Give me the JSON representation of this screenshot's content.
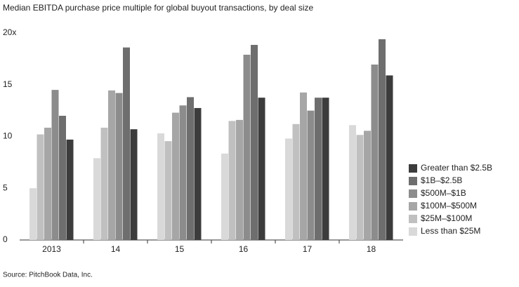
{
  "chart_data": {
    "type": "bar",
    "title": "Median EBITDA purchase price multiple for global buyout transactions, by deal size",
    "source": "Source: PitchBook Data, Inc.",
    "categories": [
      "2013",
      "14",
      "15",
      "16",
      "17",
      "18"
    ],
    "series": [
      {
        "name": "Less than $25M",
        "color": "#d9d9d9",
        "values": [
          5.0,
          7.9,
          10.3,
          8.35,
          9.8,
          11.1
        ]
      },
      {
        "name": "$25M–$100M",
        "color": "#c0c0c0",
        "values": [
          10.2,
          10.85,
          9.55,
          11.5,
          11.2,
          10.15
        ]
      },
      {
        "name": "$100M–$500M",
        "color": "#a6a6a6",
        "values": [
          10.85,
          14.45,
          12.3,
          11.6,
          14.25,
          10.55
        ]
      },
      {
        "name": "$500M–$1B",
        "color": "#8c8c8c",
        "values": [
          14.5,
          14.2,
          13.0,
          17.9,
          12.5,
          16.95
        ]
      },
      {
        "name": "$1B–$2.5B",
        "color": "#6e6e6e",
        "values": [
          12.0,
          18.6,
          13.8,
          18.85,
          13.75,
          19.4
        ]
      },
      {
        "name": "Greater than $2.5B",
        "color": "#3c3c3c",
        "values": [
          9.7,
          10.7,
          12.75,
          13.75,
          13.75,
          15.9
        ]
      }
    ],
    "ylim": [
      0,
      20
    ],
    "yticks": [
      0,
      5,
      10,
      15,
      {
        "value": 20,
        "label": "20x"
      }
    ],
    "grid": false,
    "legend": "right"
  }
}
